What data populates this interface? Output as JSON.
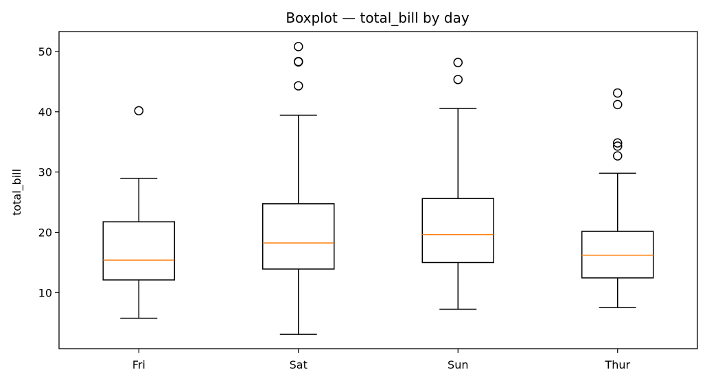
{
  "chart_data": {
    "type": "boxplot",
    "title": "Boxplot — total_bill by day",
    "xlabel": "",
    "ylabel": "total_bill",
    "categories": [
      "Fri",
      "Sat",
      "Sun",
      "Thur"
    ],
    "ylim": [
      0.7,
      53.3
    ],
    "yticks": [
      10,
      20,
      30,
      40,
      50
    ],
    "ytick_labels": [
      "10",
      "20",
      "30",
      "40",
      "50"
    ],
    "grid": false,
    "legend": "none",
    "colors": {
      "box": "#000000",
      "median": "#ff7f0e",
      "background": "#ffffff"
    },
    "boxes": [
      {
        "category": "Fri",
        "whisker_low": 5.75,
        "q1": 12.1,
        "median": 15.38,
        "q3": 21.75,
        "whisker_high": 28.97,
        "outliers": [
          40.17
        ]
      },
      {
        "category": "Sat",
        "whisker_low": 3.07,
        "q1": 13.91,
        "median": 18.24,
        "q3": 24.74,
        "whisker_high": 39.42,
        "outliers": [
          44.3,
          48.27,
          48.33,
          50.81
        ]
      },
      {
        "category": "Sun",
        "whisker_low": 7.25,
        "q1": 14.99,
        "median": 19.63,
        "q3": 25.6,
        "whisker_high": 40.55,
        "outliers": [
          45.35,
          48.17
        ]
      },
      {
        "category": "Thur",
        "whisker_low": 7.51,
        "q1": 12.44,
        "median": 16.2,
        "q3": 20.16,
        "whisker_high": 29.8,
        "outliers": [
          32.68,
          34.3,
          34.83,
          41.19,
          43.11
        ]
      }
    ]
  }
}
